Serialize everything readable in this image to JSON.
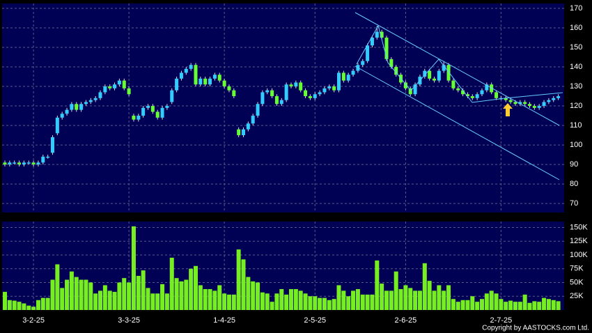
{
  "chart_data": [
    {
      "type": "candlestick",
      "up_color": "#33ccff",
      "down_color": "#66ff33",
      "grid": true,
      "categories": [
        null,
        null,
        null,
        null,
        null,
        null,
        "3-2-25",
        null,
        null,
        null,
        null,
        null,
        null,
        null,
        null,
        null,
        null,
        null,
        null,
        null,
        null,
        null,
        null,
        null,
        null,
        null,
        "3-3-25",
        null,
        null,
        null,
        null,
        null,
        null,
        null,
        null,
        null,
        null,
        null,
        null,
        null,
        null,
        null,
        null,
        null,
        null,
        null,
        "1-4-25",
        null,
        null,
        null,
        null,
        null,
        null,
        null,
        null,
        null,
        null,
        null,
        null,
        null,
        null,
        null,
        null,
        null,
        null,
        "2-5-25",
        null,
        null,
        null,
        null,
        null,
        null,
        null,
        null,
        null,
        null,
        null,
        null,
        null,
        null,
        null,
        null,
        null,
        null,
        "2-6-25",
        null,
        null,
        null,
        null,
        null,
        null,
        null,
        null,
        null,
        null,
        null,
        null,
        null,
        null,
        null,
        null,
        null,
        null,
        null,
        "2-7-25",
        null,
        null,
        null,
        null,
        null,
        null,
        null,
        null,
        null,
        null,
        null,
        null
      ],
      "open": [
        91,
        90,
        91,
        91,
        90,
        91,
        91,
        90,
        91,
        94,
        96,
        106,
        114,
        116,
        118,
        121,
        118,
        121,
        122,
        123,
        124,
        127,
        130,
        129,
        131,
        133,
        129,
        115,
        113,
        115,
        119,
        120,
        117,
        114,
        119,
        122,
        128,
        134,
        137,
        139,
        141,
        131,
        134,
        131,
        134,
        136,
        133,
        130,
        128,
        108,
        105,
        108,
        111,
        115,
        121,
        127,
        128,
        125,
        121,
        123,
        131,
        130,
        132,
        128,
        125,
        124,
        126,
        127,
        129,
        130,
        128,
        137,
        133,
        136,
        138,
        141,
        143,
        151,
        155,
        158,
        155,
        144,
        140,
        136,
        132,
        129,
        126,
        131,
        135,
        138,
        134,
        133,
        138,
        141,
        133,
        129,
        128,
        126,
        125,
        124,
        126,
        128,
        131,
        127,
        124,
        124,
        123,
        122,
        121,
        122,
        121,
        120,
        119,
        120,
        122,
        123,
        124
      ],
      "high": [
        92,
        92,
        92,
        92,
        92,
        92,
        92,
        92,
        95,
        95,
        105,
        115,
        117,
        119,
        122,
        122,
        122,
        123,
        124,
        125,
        128,
        131,
        131,
        132,
        134,
        134,
        130,
        116,
        116,
        120,
        121,
        121,
        118,
        120,
        121,
        129,
        135,
        138,
        140,
        142,
        142,
        135,
        135,
        135,
        137,
        137,
        134,
        131,
        129,
        109,
        109,
        112,
        116,
        122,
        128,
        129,
        129,
        126,
        124,
        132,
        132,
        133,
        133,
        129,
        126,
        127,
        128,
        130,
        131,
        131,
        138,
        138,
        137,
        139,
        142,
        144,
        152,
        156,
        161,
        159,
        156,
        145,
        141,
        137,
        133,
        130,
        132,
        136,
        139,
        139,
        135,
        139,
        143,
        142,
        134,
        130,
        129,
        127,
        126,
        127,
        129,
        132,
        132,
        128,
        125,
        125,
        124,
        123,
        123,
        123,
        122,
        121,
        121,
        123,
        124,
        125,
        126
      ],
      "low": [
        89,
        89,
        90,
        89,
        89,
        90,
        89,
        89,
        90,
        93,
        95,
        105,
        113,
        115,
        117,
        117,
        117,
        120,
        121,
        122,
        123,
        126,
        128,
        128,
        130,
        128,
        125,
        112,
        112,
        114,
        118,
        116,
        113,
        113,
        118,
        121,
        127,
        133,
        136,
        138,
        130,
        130,
        130,
        130,
        133,
        132,
        129,
        127,
        124,
        104,
        104,
        107,
        110,
        114,
        120,
        126,
        124,
        120,
        120,
        122,
        129,
        129,
        127,
        124,
        123,
        123,
        125,
        126,
        128,
        127,
        127,
        132,
        132,
        135,
        137,
        140,
        142,
        150,
        154,
        154,
        143,
        139,
        135,
        131,
        128,
        125,
        125,
        130,
        134,
        133,
        132,
        132,
        137,
        132,
        128,
        127,
        125,
        124,
        123,
        123,
        125,
        127,
        126,
        123,
        123,
        122,
        121,
        120,
        120,
        120,
        119,
        118,
        118,
        119,
        121,
        122,
        123
      ],
      "close": [
        90,
        91,
        91,
        90,
        91,
        91,
        90,
        91,
        94,
        94,
        104,
        114,
        116,
        118,
        121,
        118,
        121,
        122,
        123,
        124,
        127,
        130,
        129,
        131,
        133,
        129,
        126,
        113,
        115,
        119,
        120,
        117,
        114,
        119,
        120,
        128,
        134,
        137,
        139,
        141,
        131,
        134,
        131,
        134,
        136,
        133,
        130,
        128,
        125,
        105,
        108,
        111,
        115,
        121,
        127,
        128,
        125,
        121,
        123,
        131,
        130,
        132,
        128,
        125,
        124,
        126,
        127,
        129,
        130,
        128,
        137,
        133,
        136,
        138,
        141,
        143,
        151,
        155,
        158,
        155,
        144,
        140,
        136,
        132,
        129,
        126,
        131,
        135,
        138,
        134,
        133,
        138,
        141,
        133,
        129,
        128,
        126,
        125,
        124,
        126,
        128,
        131,
        127,
        124,
        124,
        123,
        122,
        121,
        122,
        121,
        120,
        119,
        120,
        122,
        123,
        124,
        125
      ],
      "ylim": [
        65.4,
        172.5
      ],
      "yticks": [
        70,
        80,
        90,
        100,
        110,
        120,
        130,
        140,
        150,
        160,
        170
      ]
    },
    {
      "type": "bar",
      "color": "#77ee22",
      "grid": true,
      "values": [
        33000,
        18000,
        17000,
        15000,
        12000,
        8000,
        6000,
        18000,
        22000,
        22000,
        55000,
        83000,
        40000,
        55000,
        70000,
        60000,
        55000,
        55000,
        50000,
        30000,
        35000,
        45000,
        35000,
        33000,
        50000,
        58000,
        50000,
        152000,
        62000,
        72000,
        40000,
        30000,
        30000,
        47000,
        30000,
        95000,
        58000,
        52000,
        55000,
        75000,
        80000,
        45000,
        38000,
        38000,
        35000,
        45000,
        30000,
        28000,
        28000,
        110000,
        92000,
        60000,
        52000,
        50000,
        32000,
        30000,
        15000,
        30000,
        38000,
        28000,
        38000,
        38000,
        35000,
        30000,
        25000,
        25000,
        22000,
        22000,
        18000,
        20000,
        45000,
        35000,
        25000,
        35000,
        38000,
        28000,
        28000,
        28000,
        90000,
        48000,
        35000,
        35000,
        70000,
        38000,
        45000,
        40000,
        35000,
        35000,
        85000,
        53000,
        35000,
        45000,
        35000,
        45000,
        20000,
        15000,
        18000,
        18000,
        25000,
        15000,
        20000,
        30000,
        35000,
        30000,
        20000,
        15000,
        17000,
        15000,
        15000,
        28000,
        13000,
        16000,
        15000,
        22000,
        20000,
        18000,
        16000
      ],
      "ylim": [
        0,
        160700
      ],
      "yticks": [
        {
          "value": 25000,
          "label": "25K"
        },
        {
          "value": 50000,
          "label": "50K"
        },
        {
          "value": 75000,
          "label": "75K"
        },
        {
          "value": 100000,
          "label": "100K"
        },
        {
          "value": 125000,
          "label": "125K"
        },
        {
          "value": 150000,
          "label": "150K"
        }
      ]
    }
  ],
  "footer": {
    "copyright": "Copyright by AASTOCKS.com Ltd."
  }
}
